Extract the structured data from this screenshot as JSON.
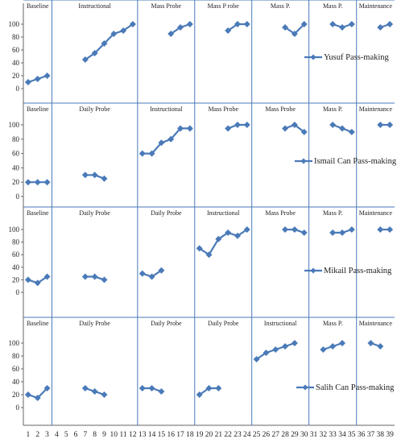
{
  "chart_data": {
    "type": "line",
    "x_ticks": [
      1,
      2,
      3,
      4,
      5,
      6,
      7,
      8,
      9,
      10,
      11,
      12,
      13,
      14,
      15,
      16,
      17,
      18,
      19,
      20,
      21,
      22,
      23,
      24,
      25,
      26,
      27,
      28,
      29,
      30,
      31,
      32,
      33,
      34,
      35,
      36,
      37,
      38,
      39
    ],
    "ylim": [
      0,
      100
    ],
    "y_ticks": [
      0,
      20,
      40,
      60,
      80,
      100
    ],
    "colors": {
      "series": "#4a7ab8",
      "divider": "#4a7ab8",
      "axis": "#666666"
    },
    "panels": [
      {
        "legend": "Yusuf Pass-making",
        "phases": [
          {
            "label": "Baseline",
            "start": 1,
            "end": 3
          },
          {
            "label": "Instructional",
            "start": 4,
            "end": 12
          },
          {
            "label": "Mass Probe",
            "start": 13,
            "end": 18
          },
          {
            "label": "Mass P robe",
            "start": 19,
            "end": 24
          },
          {
            "label": "Mass P.",
            "start": 25,
            "end": 30
          },
          {
            "label": "Mass P.",
            "start": 31,
            "end": 35
          },
          {
            "label": "Maintenance",
            "start": 36,
            "end": 39
          }
        ],
        "segments": [
          [
            [
              1,
              10
            ],
            [
              2,
              15
            ],
            [
              3,
              20
            ]
          ],
          [
            [
              7,
              45
            ],
            [
              8,
              55
            ],
            [
              9,
              70
            ],
            [
              10,
              85
            ],
            [
              11,
              90
            ],
            [
              12,
              100
            ]
          ],
          [
            [
              16,
              85
            ],
            [
              17,
              95
            ],
            [
              18,
              100
            ]
          ],
          [
            [
              22,
              90
            ],
            [
              23,
              100
            ],
            [
              24,
              100
            ]
          ],
          [
            [
              28,
              95
            ],
            [
              29,
              85
            ],
            [
              30,
              100
            ]
          ],
          [
            [
              33,
              100
            ],
            [
              34,
              95
            ],
            [
              35,
              100
            ]
          ],
          [
            [
              38,
              95
            ],
            [
              39,
              100
            ]
          ]
        ]
      },
      {
        "legend": "Ismail Can Pass-making",
        "phases": [
          {
            "label": "Baseline",
            "start": 1,
            "end": 3
          },
          {
            "label": "Daily Probe",
            "start": 4,
            "end": 12
          },
          {
            "label": "Instructional",
            "start": 13,
            "end": 18
          },
          {
            "label": "Mass Probe",
            "start": 19,
            "end": 24
          },
          {
            "label": "Mass Probe",
            "start": 25,
            "end": 30
          },
          {
            "label": "Mass P.",
            "start": 31,
            "end": 35
          },
          {
            "label": "Maintenance",
            "start": 36,
            "end": 39
          }
        ],
        "segments": [
          [
            [
              1,
              20
            ],
            [
              2,
              20
            ],
            [
              3,
              20
            ]
          ],
          [
            [
              7,
              30
            ],
            [
              8,
              30
            ],
            [
              9,
              25
            ]
          ],
          [
            [
              13,
              60
            ],
            [
              14,
              60
            ],
            [
              15,
              75
            ],
            [
              16,
              80
            ],
            [
              17,
              95
            ],
            [
              18,
              95
            ]
          ],
          [
            [
              22,
              95
            ],
            [
              23,
              100
            ],
            [
              24,
              100
            ]
          ],
          [
            [
              28,
              95
            ],
            [
              29,
              100
            ],
            [
              30,
              90
            ]
          ],
          [
            [
              33,
              100
            ],
            [
              34,
              95
            ],
            [
              35,
              90
            ]
          ],
          [
            [
              38,
              100
            ],
            [
              39,
              100
            ]
          ]
        ]
      },
      {
        "legend": "Mikail Pass-making",
        "phases": [
          {
            "label": "Baseline",
            "start": 1,
            "end": 3
          },
          {
            "label": "Daily Probe",
            "start": 4,
            "end": 12
          },
          {
            "label": "Daily Probe",
            "start": 13,
            "end": 18
          },
          {
            "label": "Instructional",
            "start": 19,
            "end": 24
          },
          {
            "label": "Mass Probe",
            "start": 25,
            "end": 30
          },
          {
            "label": "Mass P.",
            "start": 31,
            "end": 35
          },
          {
            "label": "Maintenance",
            "start": 36,
            "end": 39
          }
        ],
        "segments": [
          [
            [
              1,
              20
            ],
            [
              2,
              15
            ],
            [
              3,
              25
            ]
          ],
          [
            [
              7,
              25
            ],
            [
              8,
              25
            ],
            [
              9,
              20
            ]
          ],
          [
            [
              13,
              30
            ],
            [
              14,
              25
            ],
            [
              15,
              35
            ]
          ],
          [
            [
              19,
              70
            ],
            [
              20,
              60
            ],
            [
              21,
              85
            ],
            [
              22,
              95
            ],
            [
              23,
              90
            ],
            [
              24,
              100
            ]
          ],
          [
            [
              28,
              100
            ],
            [
              29,
              100
            ],
            [
              30,
              95
            ]
          ],
          [
            [
              33,
              95
            ],
            [
              34,
              95
            ],
            [
              35,
              100
            ]
          ],
          [
            [
              38,
              100
            ],
            [
              39,
              100
            ]
          ]
        ]
      },
      {
        "legend": "Salih Can Pass-making",
        "phases": [
          {
            "label": "Baseline",
            "start": 1,
            "end": 3
          },
          {
            "label": "Daily Probe",
            "start": 4,
            "end": 12
          },
          {
            "label": "Daily Probe",
            "start": 13,
            "end": 18
          },
          {
            "label": "Daily Probe",
            "start": 19,
            "end": 24
          },
          {
            "label": "Instructional",
            "start": 25,
            "end": 30
          },
          {
            "label": "Mass P.",
            "start": 31,
            "end": 35
          },
          {
            "label": "Maintenance",
            "start": 36,
            "end": 39
          }
        ],
        "segments": [
          [
            [
              1,
              20
            ],
            [
              2,
              15
            ],
            [
              3,
              30
            ]
          ],
          [
            [
              7,
              30
            ],
            [
              8,
              25
            ],
            [
              9,
              20
            ]
          ],
          [
            [
              13,
              30
            ],
            [
              14,
              30
            ],
            [
              15,
              25
            ]
          ],
          [
            [
              19,
              20
            ],
            [
              20,
              30
            ],
            [
              21,
              30
            ]
          ],
          [
            [
              25,
              75
            ],
            [
              26,
              85
            ],
            [
              27,
              90
            ],
            [
              28,
              95
            ],
            [
              29,
              100
            ]
          ],
          [
            [
              32,
              90
            ],
            [
              33,
              95
            ],
            [
              34,
              100
            ]
          ],
          [
            [
              37,
              100
            ],
            [
              38,
              95
            ]
          ]
        ]
      }
    ]
  }
}
